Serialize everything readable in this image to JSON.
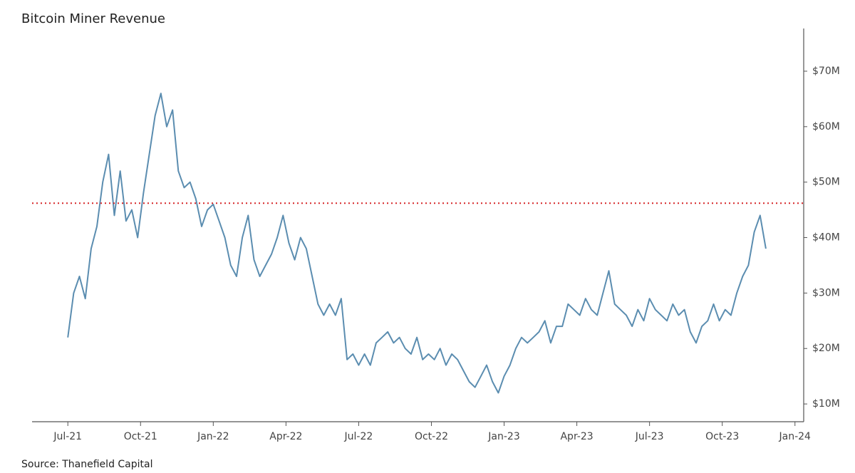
{
  "chart_data": {
    "type": "line",
    "title": "Bitcoin Miner Revenue",
    "source": "Source: Thanefield Capital",
    "x": [
      2021.5,
      2021.52,
      2021.54,
      2021.56,
      2021.58,
      2021.6,
      2021.62,
      2021.64,
      2021.66,
      2021.68,
      2021.7,
      2021.72,
      2021.74,
      2021.76,
      2021.78,
      2021.8,
      2021.82,
      2021.84,
      2021.86,
      2021.88,
      2021.9,
      2021.92,
      2021.94,
      2021.96,
      2021.98,
      2022.0,
      2022.02,
      2022.04,
      2022.06,
      2022.08,
      2022.1,
      2022.12,
      2022.14,
      2022.16,
      2022.18,
      2022.2,
      2022.22,
      2022.24,
      2022.26,
      2022.28,
      2022.3,
      2022.32,
      2022.34,
      2022.36,
      2022.38,
      2022.4,
      2022.42,
      2022.44,
      2022.46,
      2022.48,
      2022.5,
      2022.52,
      2022.54,
      2022.56,
      2022.58,
      2022.6,
      2022.62,
      2022.64,
      2022.66,
      2022.68,
      2022.7,
      2022.72,
      2022.74,
      2022.76,
      2022.78,
      2022.8,
      2022.82,
      2022.84,
      2022.86,
      2022.88,
      2022.9,
      2022.92,
      2022.94,
      2022.96,
      2022.98,
      2023.0,
      2023.02,
      2023.04,
      2023.06,
      2023.08,
      2023.1,
      2023.12,
      2023.14,
      2023.16,
      2023.18,
      2023.2,
      2023.22,
      2023.24,
      2023.26,
      2023.28,
      2023.3,
      2023.32,
      2023.34,
      2023.36,
      2023.38,
      2023.4,
      2023.42,
      2023.44,
      2023.46,
      2023.48,
      2023.5,
      2023.52,
      2023.54,
      2023.56,
      2023.58,
      2023.6,
      2023.62,
      2023.64,
      2023.66,
      2023.68,
      2023.7,
      2023.72,
      2023.74,
      2023.76,
      2023.78,
      2023.8,
      2023.82,
      2023.84,
      2023.86,
      2023.88,
      2023.9
    ],
    "values": [
      22,
      30,
      33,
      29,
      38,
      42,
      50,
      55,
      44,
      52,
      43,
      45,
      40,
      48,
      55,
      62,
      66,
      60,
      63,
      52,
      49,
      50,
      47,
      42,
      45,
      46,
      43,
      40,
      35,
      33,
      40,
      44,
      36,
      33,
      35,
      37,
      40,
      44,
      39,
      36,
      40,
      38,
      33,
      28,
      26,
      28,
      26,
      29,
      18,
      19,
      17,
      19,
      17,
      21,
      22,
      23,
      21,
      22,
      20,
      19,
      22,
      18,
      19,
      18,
      20,
      17,
      19,
      18,
      16,
      14,
      13,
      15,
      17,
      14,
      12,
      15,
      17,
      20,
      22,
      21,
      22,
      23,
      25,
      21,
      24,
      24,
      28,
      27,
      26,
      29,
      27,
      26,
      30,
      34,
      28,
      27,
      26,
      24,
      27,
      25,
      29,
      27,
      26,
      25,
      28,
      26,
      27,
      23,
      21,
      24,
      25,
      28,
      25,
      27,
      26,
      30,
      33,
      35,
      41,
      44,
      38
    ],
    "color": "#5b8db0",
    "reference_line": {
      "value": 46.2,
      "color": "#d62728"
    },
    "xlim": [
      2021.377,
      2024.03
    ],
    "xticks": [
      {
        "value": 2021.5,
        "label": "Jul-21"
      },
      {
        "value": 2021.75,
        "label": "Oct-21"
      },
      {
        "value": 2022.0,
        "label": "Jan-22"
      },
      {
        "value": 2022.25,
        "label": "Apr-22"
      },
      {
        "value": 2022.5,
        "label": "Jul-22"
      },
      {
        "value": 2022.75,
        "label": "Oct-22"
      },
      {
        "value": 2023.0,
        "label": "Jan-23"
      },
      {
        "value": 2023.25,
        "label": "Apr-23"
      },
      {
        "value": 2023.5,
        "label": "Jul-23"
      },
      {
        "value": 2023.75,
        "label": "Oct-23"
      },
      {
        "value": 2024.0,
        "label": "Jan-24"
      }
    ],
    "ylim": [
      6.8,
      77.7
    ],
    "yticks": [
      {
        "value": 10,
        "label": "$10M"
      },
      {
        "value": 20,
        "label": "$20M"
      },
      {
        "value": 30,
        "label": "$30M"
      },
      {
        "value": 40,
        "label": "$40M"
      },
      {
        "value": 50,
        "label": "$50M"
      },
      {
        "value": 60,
        "label": "$60M"
      },
      {
        "value": 70,
        "label": "$70M"
      }
    ],
    "y_axis_side": "right",
    "grid": false
  }
}
